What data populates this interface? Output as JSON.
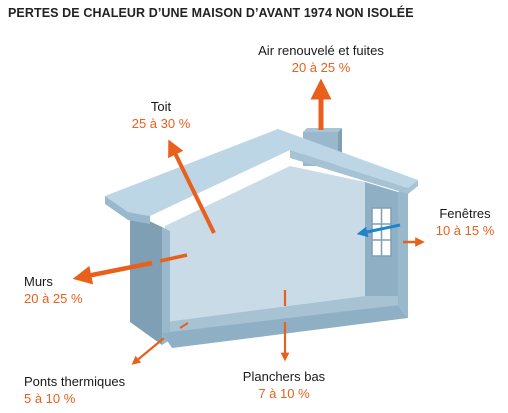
{
  "title": "PERTES DE CHALEUR D’UNE MAISON D’AVANT 1974 NON ISOLÉE",
  "colors": {
    "arrow": "#e8601c",
    "arrow_in": "#1f84c8",
    "wall_front": "#9ab8cb",
    "roof": "#bcd6e6",
    "interior": "#c9dce8"
  },
  "labels": {
    "air": {
      "name": "Air renouvelé et fuites",
      "value": "20 à 25 %"
    },
    "toit": {
      "name": "Toit",
      "value": "25 à 30 %"
    },
    "fenetres": {
      "name": "Fenêtres",
      "value": "10 à 15 %"
    },
    "murs": {
      "name": "Murs",
      "value": "20 à 25 %"
    },
    "ponts": {
      "name": "Ponts thermiques",
      "value": "5 à 10 %"
    },
    "planchers": {
      "name": "Planchers bas",
      "value": "7 à 10 %"
    }
  }
}
